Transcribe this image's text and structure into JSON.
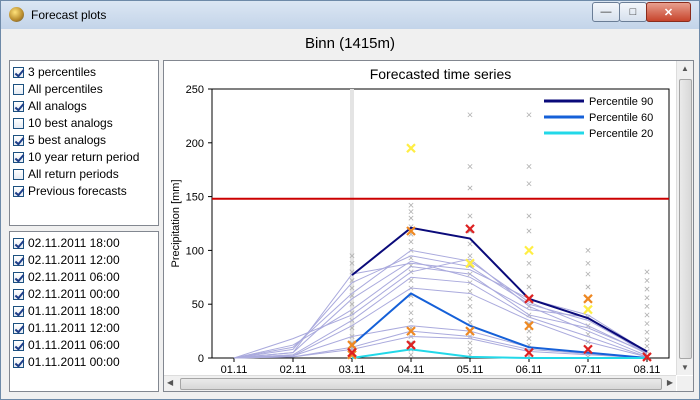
{
  "window": {
    "title": "Forecast plots"
  },
  "location_title": "Binn (1415m)",
  "options": [
    {
      "label": "3 percentiles",
      "checked": true
    },
    {
      "label": "All percentiles",
      "checked": false
    },
    {
      "label": "All analogs",
      "checked": true
    },
    {
      "label": "10 best analogs",
      "checked": false
    },
    {
      "label": "5 best analogs",
      "checked": true
    },
    {
      "label": "10 year return period",
      "checked": true
    },
    {
      "label": "All return periods",
      "checked": false
    },
    {
      "label": "Previous forecasts",
      "checked": true
    }
  ],
  "forecasts": [
    {
      "label": "02.11.2011 18:00",
      "checked": true
    },
    {
      "label": "02.11.2011 12:00",
      "checked": true
    },
    {
      "label": "02.11.2011 06:00",
      "checked": true
    },
    {
      "label": "02.11.2011 00:00",
      "checked": true
    },
    {
      "label": "01.11.2011 18:00",
      "checked": true
    },
    {
      "label": "01.11.2011 12:00",
      "checked": true
    },
    {
      "label": "01.11.2011 06:00",
      "checked": true
    },
    {
      "label": "01.11.2011 00:00",
      "checked": true
    }
  ],
  "colors": {
    "p90": "#0a0a7a",
    "p60": "#1560d8",
    "p20": "#22d8e8",
    "return_period": "#cc0000",
    "previous": "#aaaadd",
    "analogs": "#b0b0b0",
    "best1": "#dd2222",
    "best2": "#ee8822",
    "best3": "#ffee44"
  },
  "chart_data": {
    "type": "line",
    "title": "Forecasted time series",
    "ylabel": "Precipitation [mm]",
    "categories": [
      "01.11",
      "02.11",
      "03.11",
      "04.11",
      "05.11",
      "06.11",
      "07.11",
      "08.11"
    ],
    "ylim": [
      0,
      250
    ],
    "yticks": [
      0,
      50,
      100,
      150,
      200,
      250
    ],
    "legend_position": "top-right",
    "return_period_10y": 148,
    "series": [
      {
        "name": "Percentile 90",
        "color_key": "p90",
        "values": [
          null,
          null,
          77,
          121,
          111,
          55,
          37,
          6
        ]
      },
      {
        "name": "Percentile 60",
        "color_key": "p60",
        "values": [
          null,
          null,
          12,
          60,
          30,
          10,
          5,
          0
        ]
      },
      {
        "name": "Percentile 20",
        "color_key": "p20",
        "values": [
          null,
          null,
          0,
          8,
          1,
          0,
          0,
          0
        ]
      }
    ],
    "previous_forecasts": [
      [
        0,
        5,
        78,
        88,
        82,
        55,
        40,
        6
      ],
      [
        0,
        8,
        70,
        95,
        85,
        50,
        35,
        5
      ],
      [
        0,
        10,
        60,
        100,
        90,
        52,
        30,
        4
      ],
      [
        0,
        5,
        55,
        90,
        75,
        45,
        38,
        3
      ],
      [
        0,
        12,
        45,
        85,
        78,
        40,
        28,
        5
      ],
      [
        0,
        18,
        40,
        80,
        92,
        48,
        25,
        2
      ],
      [
        0,
        3,
        35,
        75,
        70,
        38,
        20,
        1
      ],
      [
        0,
        2,
        30,
        65,
        60,
        35,
        15,
        1
      ],
      [
        0,
        2,
        20,
        30,
        25,
        10,
        5,
        0
      ],
      [
        0,
        1,
        10,
        25,
        20,
        8,
        4,
        0
      ],
      [
        0,
        1,
        8,
        20,
        18,
        6,
        3,
        0
      ]
    ],
    "analogs": [
      {
        "x": 2,
        "values": [
          95,
          88,
          80,
          72,
          65,
          58,
          50,
          42,
          35,
          28,
          20,
          14,
          9,
          5,
          2
        ]
      },
      {
        "x": 3,
        "values": [
          142,
          136,
          130,
          122,
          115,
          108,
          100,
          93,
          86,
          80,
          72,
          65,
          58,
          50,
          42,
          35,
          28,
          20,
          14,
          8,
          3
        ]
      },
      {
        "x": 4,
        "values": [
          226,
          178,
          158,
          132,
          118,
          106,
          95,
          86,
          78,
          70,
          62,
          55,
          48,
          40,
          33,
          26,
          20,
          14,
          8,
          3
        ]
      },
      {
        "x": 5,
        "values": [
          226,
          178,
          162,
          132,
          118,
          100,
          88,
          76,
          66,
          56,
          48,
          40,
          32,
          25,
          18,
          12,
          6,
          2
        ]
      },
      {
        "x": 6,
        "values": [
          100,
          88,
          78,
          66,
          56,
          46,
          38,
          30,
          22,
          15,
          9,
          4,
          1
        ]
      },
      {
        "x": 7,
        "values": [
          80,
          72,
          64,
          56,
          48,
          40,
          32,
          24,
          17,
          11,
          6,
          2
        ]
      }
    ],
    "best_analogs": [
      {
        "x": 2,
        "values": [
          12,
          5,
          3
        ],
        "color_key": "best2"
      },
      {
        "x": 2,
        "values": [
          5
        ],
        "color_key": "best1"
      },
      {
        "x": 3,
        "values": [
          195
        ],
        "color_key": "best3"
      },
      {
        "x": 3,
        "values": [
          118
        ],
        "color_key": "best2"
      },
      {
        "x": 3,
        "values": [
          25
        ],
        "color_key": "best2"
      },
      {
        "x": 3,
        "values": [
          12
        ],
        "color_key": "best1"
      },
      {
        "x": 4,
        "values": [
          120
        ],
        "color_key": "best1"
      },
      {
        "x": 4,
        "values": [
          88
        ],
        "color_key": "best3"
      },
      {
        "x": 4,
        "values": [
          25
        ],
        "color_key": "best2"
      },
      {
        "x": 5,
        "values": [
          100
        ],
        "color_key": "best3"
      },
      {
        "x": 5,
        "values": [
          55
        ],
        "color_key": "best1"
      },
      {
        "x": 5,
        "values": [
          30
        ],
        "color_key": "best2"
      },
      {
        "x": 5,
        "values": [
          5
        ],
        "color_key": "best1"
      },
      {
        "x": 6,
        "values": [
          55
        ],
        "color_key": "best2"
      },
      {
        "x": 6,
        "values": [
          45
        ],
        "color_key": "best3"
      },
      {
        "x": 6,
        "values": [
          8
        ],
        "color_key": "best1"
      },
      {
        "x": 7,
        "values": [
          1
        ],
        "color_key": "best1"
      }
    ]
  }
}
